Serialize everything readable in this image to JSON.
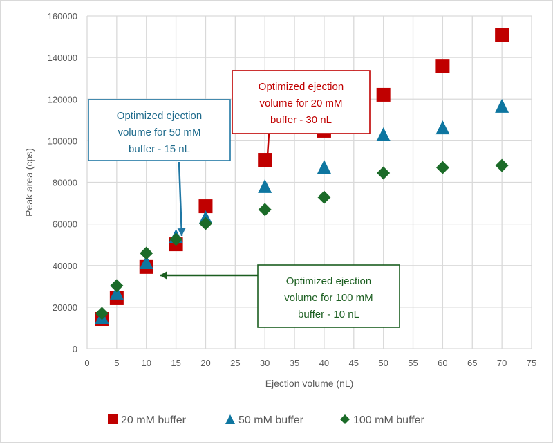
{
  "chart_data": {
    "type": "scatter",
    "title": "",
    "xlabel": "Ejection volume (nL)",
    "ylabel": "Peak area (cps)",
    "xlim": [
      0,
      75
    ],
    "ylim": [
      0,
      160000
    ],
    "xticks": [
      0,
      5,
      10,
      15,
      20,
      25,
      30,
      35,
      40,
      45,
      50,
      55,
      60,
      65,
      70,
      75
    ],
    "yticks": [
      0,
      20000,
      40000,
      60000,
      80000,
      100000,
      120000,
      140000,
      160000
    ],
    "grid": true,
    "legend_position": "bottom",
    "x": [
      2.5,
      5,
      10,
      15,
      20,
      30,
      40,
      50,
      60,
      70
    ],
    "series": [
      {
        "name": "20 mM buffer",
        "marker": "square",
        "color": "#c00000",
        "values": [
          14300,
          24300,
          39300,
          50200,
          68500,
          90800,
          104800,
          122100,
          136000,
          150700
        ]
      },
      {
        "name": "50 mM buffer",
        "marker": "triangle",
        "color": "#0e76a0",
        "values": [
          15300,
          27000,
          41600,
          54200,
          63200,
          78200,
          87500,
          103100,
          106400,
          116800
        ]
      },
      {
        "name": "100 mM buffer",
        "marker": "diamond",
        "color": "#1b6b28",
        "values": [
          17000,
          30300,
          45900,
          52600,
          60200,
          66900,
          72800,
          84500,
          87100,
          88100
        ]
      }
    ],
    "annotations": [
      {
        "id": "ann-50mm",
        "lines": [
          "Optimized ejection",
          "volume for 50 mM",
          "buffer - 15 nL"
        ],
        "color": "#1f6b8c",
        "border_color": "#1f77a4",
        "arrow_color": "#1f77a4",
        "points_to": {
          "x": 15,
          "y": 55000
        }
      },
      {
        "id": "ann-20mm",
        "lines": [
          "Optimized ejection",
          "volume for 20 mM",
          "buffer - 30 nL"
        ],
        "color": "#c00000",
        "border_color": "#c00000",
        "arrow_color": "#c00000",
        "points_to": {
          "x": 30,
          "y": 90800
        }
      },
      {
        "id": "ann-100mm",
        "lines": [
          "Optimized ejection",
          "volume for 100 mM",
          "buffer - 10 nL"
        ],
        "color": "#1b5e20",
        "border_color": "#1b5e20",
        "arrow_color": "#1b5e20",
        "points_to": {
          "x": 11,
          "y": 35000
        }
      }
    ]
  }
}
